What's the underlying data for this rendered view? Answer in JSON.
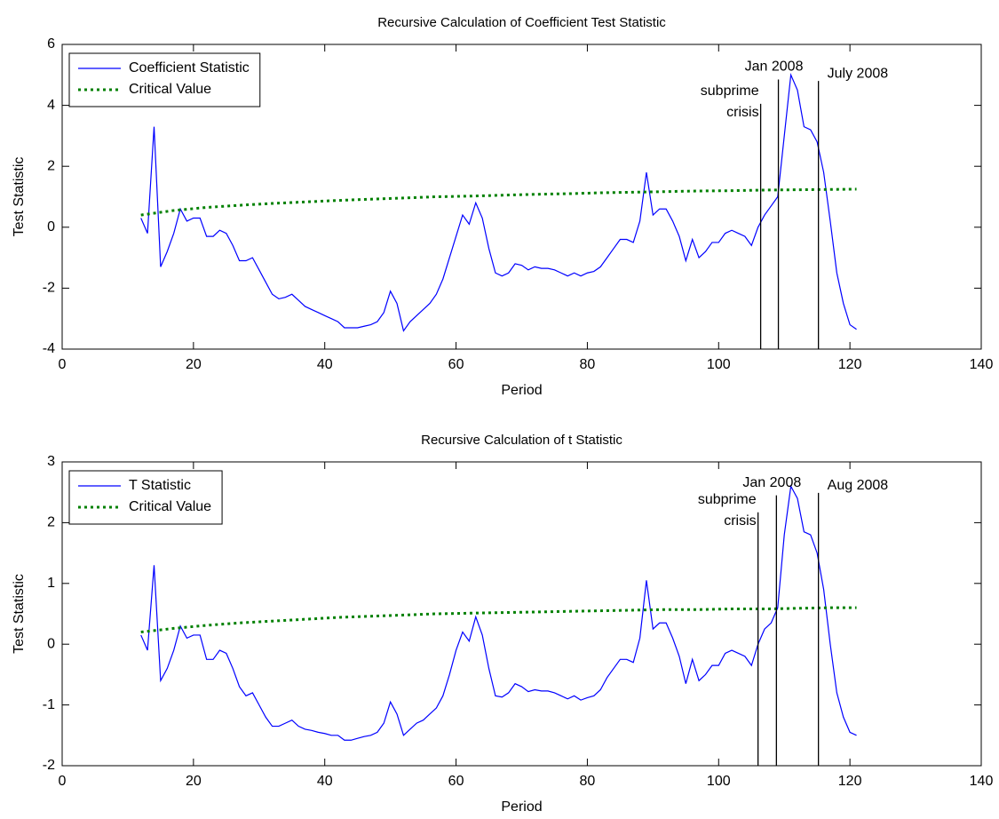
{
  "chart_data": [
    {
      "type": "line",
      "title": "Recursive Calculation of Coefficient Test Statistic",
      "xlabel": "Period",
      "ylabel": "Test Statistic",
      "xlim": [
        0,
        140
      ],
      "xticks": [
        0,
        20,
        40,
        60,
        80,
        100,
        120,
        140
      ],
      "ylim": [
        -4,
        6
      ],
      "yticks": [
        -4,
        -2,
        0,
        2,
        4,
        6
      ],
      "legend": "upper left",
      "series": [
        {
          "name": "Coefficient Statistic",
          "color": "#0000ff",
          "style": "solid",
          "x": [
            12,
            13,
            14,
            15,
            16,
            17,
            18,
            19,
            20,
            21,
            22,
            23,
            24,
            25,
            26,
            27,
            28,
            29,
            30,
            31,
            32,
            33,
            34,
            35,
            36,
            37,
            38,
            39,
            40,
            41,
            42,
            43,
            44,
            45,
            46,
            47,
            48,
            49,
            50,
            51,
            52,
            53,
            54,
            55,
            56,
            57,
            58,
            59,
            60,
            61,
            62,
            63,
            64,
            65,
            66,
            67,
            68,
            69,
            70,
            71,
            72,
            73,
            74,
            75,
            76,
            77,
            78,
            79,
            80,
            81,
            82,
            83,
            84,
            85,
            86,
            87,
            88,
            89,
            90,
            91,
            92,
            93,
            94,
            95,
            96,
            97,
            98,
            99,
            100,
            101,
            102,
            103,
            104,
            105,
            106,
            107,
            108,
            109,
            110,
            111,
            112,
            113,
            114,
            115,
            116,
            117,
            118,
            119,
            120,
            121
          ],
          "values": [
            0.3,
            -0.2,
            3.3,
            -1.3,
            -0.8,
            -0.2,
            0.6,
            0.2,
            0.3,
            0.3,
            -0.3,
            -0.3,
            -0.1,
            -0.2,
            -0.6,
            -1.1,
            -1.1,
            -1.0,
            -1.4,
            -1.8,
            -2.2,
            -2.35,
            -2.3,
            -2.2,
            -2.4,
            -2.6,
            -2.7,
            -2.8,
            -2.9,
            -3.0,
            -3.1,
            -3.3,
            -3.3,
            -3.3,
            -3.25,
            -3.2,
            -3.1,
            -2.8,
            -2.1,
            -2.5,
            -3.4,
            -3.1,
            -2.9,
            -2.7,
            -2.5,
            -2.2,
            -1.7,
            -1.0,
            -0.3,
            0.4,
            0.1,
            0.8,
            0.3,
            -0.7,
            -1.5,
            -1.6,
            -1.5,
            -1.2,
            -1.25,
            -1.4,
            -1.3,
            -1.35,
            -1.35,
            -1.4,
            -1.5,
            -1.6,
            -1.5,
            -1.6,
            -1.5,
            -1.45,
            -1.3,
            -1.0,
            -0.7,
            -0.4,
            -0.4,
            -0.5,
            0.2,
            1.8,
            0.4,
            0.6,
            0.6,
            0.2,
            -0.3,
            -1.1,
            -0.4,
            -1.0,
            -0.8,
            -0.5,
            -0.5,
            -0.2,
            -0.1,
            -0.2,
            -0.3,
            -0.6,
            0.0,
            0.4,
            0.7,
            1.0,
            3.0,
            5.0,
            4.5,
            3.3,
            3.2,
            2.8,
            1.8,
            0.2,
            -1.5,
            -2.5,
            -3.2,
            -3.35
          ]
        },
        {
          "name": "Critical Value",
          "color": "#008000",
          "style": "dotted",
          "x": [
            12,
            17,
            22,
            27,
            32,
            37,
            42,
            47,
            52,
            57,
            62,
            67,
            72,
            77,
            82,
            87,
            92,
            97,
            102,
            107,
            112,
            117,
            121
          ],
          "values": [
            0.4,
            0.55,
            0.65,
            0.72,
            0.78,
            0.83,
            0.88,
            0.92,
            0.96,
            1.0,
            1.02,
            1.05,
            1.08,
            1.1,
            1.13,
            1.15,
            1.17,
            1.19,
            1.2,
            1.22,
            1.23,
            1.24,
            1.25
          ]
        }
      ],
      "annotations": [
        {
          "x": 106.4,
          "top": 4.05,
          "label": [
            "subprime",
            "crisis"
          ]
        },
        {
          "x": 109.1,
          "top": 4.85,
          "label": [
            "Jan 2008"
          ]
        },
        {
          "x": 115.2,
          "top": 4.8,
          "label": [
            "July 2008"
          ]
        }
      ]
    },
    {
      "type": "line",
      "title": "Recursive Calculation of t Statistic",
      "xlabel": "Period",
      "ylabel": "Test Statistic",
      "xlim": [
        0,
        140
      ],
      "xticks": [
        0,
        20,
        40,
        60,
        80,
        100,
        120,
        140
      ],
      "ylim": [
        -2,
        3
      ],
      "yticks": [
        -2,
        -1,
        0,
        1,
        2,
        3
      ],
      "legend": "upper left",
      "series": [
        {
          "name": "T Statistic",
          "color": "#0000ff",
          "style": "solid",
          "x": [
            12,
            13,
            14,
            15,
            16,
            17,
            18,
            19,
            20,
            21,
            22,
            23,
            24,
            25,
            26,
            27,
            28,
            29,
            30,
            31,
            32,
            33,
            34,
            35,
            36,
            37,
            38,
            39,
            40,
            41,
            42,
            43,
            44,
            45,
            46,
            47,
            48,
            49,
            50,
            51,
            52,
            53,
            54,
            55,
            56,
            57,
            58,
            59,
            60,
            61,
            62,
            63,
            64,
            65,
            66,
            67,
            68,
            69,
            70,
            71,
            72,
            73,
            74,
            75,
            76,
            77,
            78,
            79,
            80,
            81,
            82,
            83,
            84,
            85,
            86,
            87,
            88,
            89,
            90,
            91,
            92,
            93,
            94,
            95,
            96,
            97,
            98,
            99,
            100,
            101,
            102,
            103,
            104,
            105,
            106,
            107,
            108,
            109,
            110,
            111,
            112,
            113,
            114,
            115,
            116,
            117,
            118,
            119,
            120,
            121
          ],
          "values": [
            0.15,
            -0.1,
            1.3,
            -0.6,
            -0.4,
            -0.1,
            0.3,
            0.1,
            0.15,
            0.15,
            -0.25,
            -0.25,
            -0.1,
            -0.15,
            -0.4,
            -0.7,
            -0.85,
            -0.8,
            -1.0,
            -1.2,
            -1.35,
            -1.35,
            -1.3,
            -1.25,
            -1.35,
            -1.4,
            -1.42,
            -1.45,
            -1.47,
            -1.5,
            -1.5,
            -1.58,
            -1.58,
            -1.55,
            -1.52,
            -1.5,
            -1.45,
            -1.3,
            -0.95,
            -1.15,
            -1.5,
            -1.4,
            -1.3,
            -1.25,
            -1.15,
            -1.05,
            -0.85,
            -0.5,
            -0.1,
            0.2,
            0.05,
            0.45,
            0.15,
            -0.4,
            -0.85,
            -0.87,
            -0.8,
            -0.65,
            -0.7,
            -0.78,
            -0.75,
            -0.77,
            -0.77,
            -0.8,
            -0.85,
            -0.9,
            -0.85,
            -0.92,
            -0.88,
            -0.85,
            -0.75,
            -0.55,
            -0.4,
            -0.25,
            -0.25,
            -0.3,
            0.1,
            1.05,
            0.25,
            0.35,
            0.35,
            0.1,
            -0.2,
            -0.65,
            -0.25,
            -0.6,
            -0.5,
            -0.35,
            -0.35,
            -0.15,
            -0.1,
            -0.15,
            -0.2,
            -0.35,
            0.0,
            0.25,
            0.35,
            0.6,
            1.8,
            2.6,
            2.4,
            1.85,
            1.8,
            1.5,
            0.9,
            0.0,
            -0.8,
            -1.2,
            -1.45,
            -1.5
          ]
        },
        {
          "name": "Critical Value",
          "color": "#008000",
          "style": "dotted",
          "x": [
            12,
            17,
            22,
            27,
            32,
            37,
            42,
            47,
            52,
            57,
            62,
            67,
            72,
            77,
            82,
            87,
            92,
            97,
            102,
            107,
            112,
            117,
            121
          ],
          "values": [
            0.2,
            0.26,
            0.31,
            0.35,
            0.38,
            0.41,
            0.44,
            0.46,
            0.48,
            0.5,
            0.51,
            0.52,
            0.53,
            0.54,
            0.55,
            0.56,
            0.57,
            0.57,
            0.58,
            0.58,
            0.59,
            0.6,
            0.6
          ]
        }
      ],
      "annotations": [
        {
          "x": 106.0,
          "top": 2.17,
          "label": [
            "subprime",
            "crisis"
          ]
        },
        {
          "x": 108.8,
          "top": 2.45,
          "label": [
            "Jan 2008"
          ]
        },
        {
          "x": 115.2,
          "top": 2.49,
          "label": [
            "Aug 2008"
          ]
        }
      ]
    }
  ]
}
